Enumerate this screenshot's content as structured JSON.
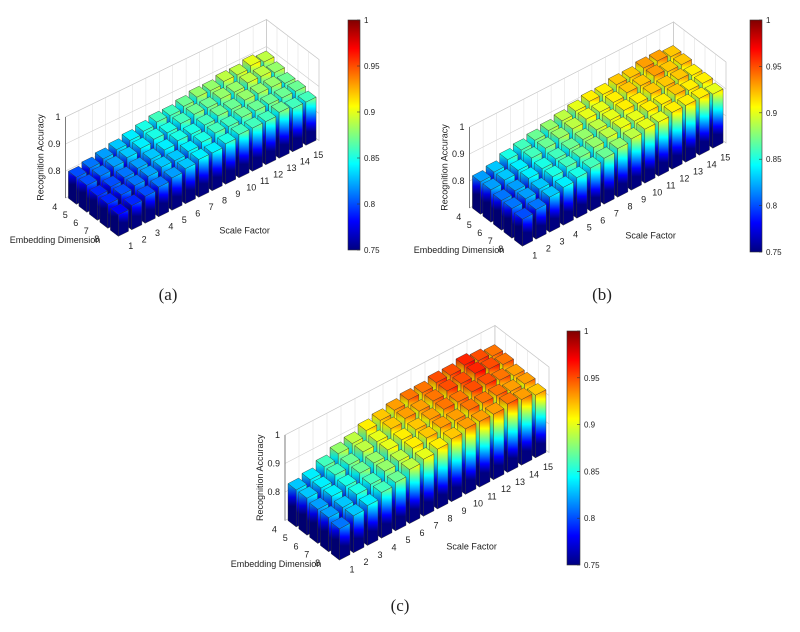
{
  "chart_data": [
    {
      "type": "bar3d",
      "panel_label": "(a)",
      "x_label": "Scale Factor",
      "y_label": "Embedding Dimension",
      "z_label": "Recognition Accuracy",
      "x_categories": [
        1,
        2,
        3,
        4,
        5,
        6,
        7,
        8,
        9,
        10,
        11,
        12,
        13,
        14,
        15
      ],
      "y_categories": [
        4,
        5,
        6,
        7,
        8
      ],
      "values": [
        [
          0.8,
          0.81,
          0.82,
          0.83,
          0.84,
          0.85,
          0.86,
          0.86,
          0.87,
          0.88,
          0.88,
          0.89,
          0.89,
          0.9,
          0.89
        ],
        [
          0.8,
          0.81,
          0.82,
          0.83,
          0.84,
          0.85,
          0.85,
          0.86,
          0.87,
          0.87,
          0.88,
          0.88,
          0.89,
          0.89,
          0.88
        ],
        [
          0.79,
          0.8,
          0.81,
          0.82,
          0.83,
          0.84,
          0.85,
          0.85,
          0.86,
          0.87,
          0.87,
          0.88,
          0.88,
          0.88,
          0.87
        ],
        [
          0.79,
          0.8,
          0.81,
          0.82,
          0.83,
          0.83,
          0.84,
          0.85,
          0.86,
          0.86,
          0.87,
          0.87,
          0.87,
          0.87,
          0.87
        ],
        [
          0.78,
          0.79,
          0.8,
          0.81,
          0.82,
          0.83,
          0.84,
          0.84,
          0.85,
          0.86,
          0.86,
          0.86,
          0.87,
          0.86,
          0.86
        ]
      ],
      "zlim": [
        0.7,
        1
      ],
      "zticks": [
        0.8,
        0.9,
        1
      ],
      "clim": [
        0.75,
        1
      ],
      "cticks": [
        0.75,
        0.8,
        0.85,
        0.9,
        0.95,
        1
      ],
      "colormap": "jet",
      "grid": true
    },
    {
      "type": "bar3d",
      "panel_label": "(b)",
      "x_label": "Scale Factor",
      "y_label": "Embedding Dimension",
      "z_label": "Recognition Accuracy",
      "x_categories": [
        1,
        2,
        3,
        4,
        5,
        6,
        7,
        8,
        9,
        10,
        11,
        12,
        13,
        14,
        15
      ],
      "y_categories": [
        4,
        5,
        6,
        7,
        8
      ],
      "values": [
        [
          0.82,
          0.83,
          0.85,
          0.86,
          0.87,
          0.88,
          0.89,
          0.9,
          0.91,
          0.91,
          0.92,
          0.92,
          0.93,
          0.93,
          0.92
        ],
        [
          0.82,
          0.83,
          0.84,
          0.86,
          0.87,
          0.88,
          0.89,
          0.9,
          0.9,
          0.91,
          0.92,
          0.92,
          0.93,
          0.92,
          0.92
        ],
        [
          0.81,
          0.82,
          0.84,
          0.85,
          0.86,
          0.87,
          0.88,
          0.89,
          0.9,
          0.91,
          0.91,
          0.92,
          0.92,
          0.92,
          0.91
        ],
        [
          0.81,
          0.82,
          0.83,
          0.85,
          0.86,
          0.87,
          0.88,
          0.89,
          0.9,
          0.9,
          0.91,
          0.91,
          0.92,
          0.91,
          0.91
        ],
        [
          0.8,
          0.81,
          0.83,
          0.84,
          0.85,
          0.86,
          0.87,
          0.88,
          0.89,
          0.9,
          0.9,
          0.91,
          0.91,
          0.91,
          0.9
        ]
      ],
      "zlim": [
        0.7,
        1
      ],
      "zticks": [
        0.8,
        0.9,
        1
      ],
      "clim": [
        0.75,
        1
      ],
      "cticks": [
        0.75,
        0.8,
        0.85,
        0.9,
        0.95,
        1
      ],
      "colormap": "jet",
      "grid": true
    },
    {
      "type": "bar3d",
      "panel_label": "(c)",
      "x_label": "Scale Factor",
      "y_label": "Embedding Dimension",
      "z_label": "Recognition Accuracy",
      "x_categories": [
        1,
        2,
        3,
        4,
        5,
        6,
        7,
        8,
        9,
        10,
        11,
        12,
        13,
        14,
        15
      ],
      "y_categories": [
        4,
        5,
        6,
        7,
        8
      ],
      "values": [
        [
          0.83,
          0.84,
          0.86,
          0.88,
          0.89,
          0.91,
          0.92,
          0.93,
          0.94,
          0.94,
          0.95,
          0.95,
          0.96,
          0.95,
          0.94
        ],
        [
          0.83,
          0.84,
          0.86,
          0.87,
          0.89,
          0.9,
          0.92,
          0.93,
          0.93,
          0.94,
          0.95,
          0.95,
          0.96,
          0.95,
          0.94
        ],
        [
          0.82,
          0.84,
          0.85,
          0.87,
          0.88,
          0.9,
          0.91,
          0.92,
          0.93,
          0.94,
          0.94,
          0.95,
          0.95,
          0.94,
          0.93
        ],
        [
          0.82,
          0.83,
          0.85,
          0.86,
          0.88,
          0.89,
          0.91,
          0.92,
          0.93,
          0.93,
          0.94,
          0.94,
          0.94,
          0.93,
          0.93
        ],
        [
          0.81,
          0.83,
          0.84,
          0.86,
          0.87,
          0.89,
          0.9,
          0.91,
          0.92,
          0.93,
          0.93,
          0.93,
          0.94,
          0.93,
          0.92
        ]
      ],
      "zlim": [
        0.7,
        1
      ],
      "zticks": [
        0.8,
        0.9,
        1
      ],
      "clim": [
        0.75,
        1
      ],
      "cticks": [
        0.75,
        0.8,
        0.85,
        0.9,
        0.95,
        1
      ],
      "colormap": "jet",
      "grid": true
    }
  ]
}
